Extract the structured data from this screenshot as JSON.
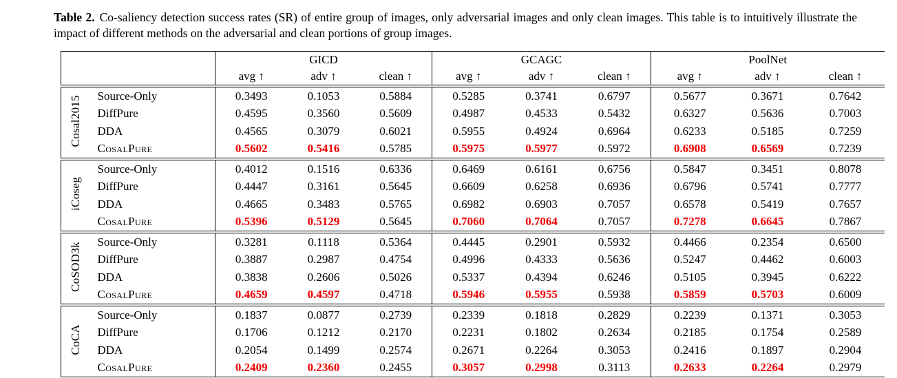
{
  "caption": {
    "label": "Table 2.",
    "text": "Co-saliency detection success rates (SR) of entire group of images, only adversarial images and only clean images. This table is to intuitively illustrate the impact of different methods on the adversarial and clean portions of group images."
  },
  "table": {
    "model_groups": [
      "GICD",
      "GCAGC",
      "PoolNet"
    ],
    "metric_headers": [
      "avg ↑",
      "adv ↑",
      "clean ↑"
    ],
    "highlight_color": "#ee0000",
    "datasets": [
      {
        "name": "Cosal2015",
        "rows": [
          {
            "method": "Source-Only",
            "values": [
              "0.3493",
              "0.1053",
              "0.5884",
              "0.5285",
              "0.3741",
              "0.6797",
              "0.5677",
              "0.3671",
              "0.7642"
            ],
            "red_indices": []
          },
          {
            "method": "DiffPure",
            "values": [
              "0.4595",
              "0.3560",
              "0.5609",
              "0.4987",
              "0.4533",
              "0.5432",
              "0.6327",
              "0.5636",
              "0.7003"
            ],
            "red_indices": []
          },
          {
            "method": "DDA",
            "values": [
              "0.4565",
              "0.3079",
              "0.6021",
              "0.5955",
              "0.4924",
              "0.6964",
              "0.6233",
              "0.5185",
              "0.7259"
            ],
            "red_indices": []
          },
          {
            "method": "CosalPure",
            "smallcaps": true,
            "values": [
              "0.5602",
              "0.5416",
              "0.5785",
              "0.5975",
              "0.5977",
              "0.5972",
              "0.6908",
              "0.6569",
              "0.7239"
            ],
            "red_indices": [
              0,
              1,
              3,
              4,
              6,
              7
            ]
          }
        ]
      },
      {
        "name": "iCoseg",
        "rows": [
          {
            "method": "Source-Only",
            "values": [
              "0.4012",
              "0.1516",
              "0.6336",
              "0.6469",
              "0.6161",
              "0.6756",
              "0.5847",
              "0.3451",
              "0.8078"
            ],
            "red_indices": []
          },
          {
            "method": "DiffPure",
            "values": [
              "0.4447",
              "0.3161",
              "0.5645",
              "0.6609",
              "0.6258",
              "0.6936",
              "0.6796",
              "0.5741",
              "0.7777"
            ],
            "red_indices": []
          },
          {
            "method": "DDA",
            "values": [
              "0.4665",
              "0.3483",
              "0.5765",
              "0.6982",
              "0.6903",
              "0.7057",
              "0.6578",
              "0.5419",
              "0.7657"
            ],
            "red_indices": []
          },
          {
            "method": "CosalPure",
            "smallcaps": true,
            "values": [
              "0.5396",
              "0.5129",
              "0.5645",
              "0.7060",
              "0.7064",
              "0.7057",
              "0.7278",
              "0.6645",
              "0.7867"
            ],
            "red_indices": [
              0,
              1,
              3,
              4,
              6,
              7
            ]
          }
        ]
      },
      {
        "name": "CoSOD3k",
        "rows": [
          {
            "method": "Source-Only",
            "values": [
              "0.3281",
              "0.1118",
              "0.5364",
              "0.4445",
              "0.2901",
              "0.5932",
              "0.4466",
              "0.2354",
              "0.6500"
            ],
            "red_indices": []
          },
          {
            "method": "DiffPure",
            "values": [
              "0.3887",
              "0.2987",
              "0.4754",
              "0.4996",
              "0.4333",
              "0.5636",
              "0.5247",
              "0.4462",
              "0.6003"
            ],
            "red_indices": []
          },
          {
            "method": "DDA",
            "values": [
              "0.3838",
              "0.2606",
              "0.5026",
              "0.5337",
              "0.4394",
              "0.6246",
              "0.5105",
              "0.3945",
              "0.6222"
            ],
            "red_indices": []
          },
          {
            "method": "CosalPure",
            "smallcaps": true,
            "values": [
              "0.4659",
              "0.4597",
              "0.4718",
              "0.5946",
              "0.5955",
              "0.5938",
              "0.5859",
              "0.5703",
              "0.6009"
            ],
            "red_indices": [
              0,
              1,
              3,
              4,
              6,
              7
            ]
          }
        ]
      },
      {
        "name": "CoCA",
        "rows": [
          {
            "method": "Source-Only",
            "values": [
              "0.1837",
              "0.0877",
              "0.2739",
              "0.2339",
              "0.1818",
              "0.2829",
              "0.2239",
              "0.1371",
              "0.3053"
            ],
            "red_indices": []
          },
          {
            "method": "DiffPure",
            "values": [
              "0.1706",
              "0.1212",
              "0.2170",
              "0.2231",
              "0.1802",
              "0.2634",
              "0.2185",
              "0.1754",
              "0.2589"
            ],
            "red_indices": []
          },
          {
            "method": "DDA",
            "values": [
              "0.2054",
              "0.1499",
              "0.2574",
              "0.2671",
              "0.2264",
              "0.3053",
              "0.2416",
              "0.1897",
              "0.2904"
            ],
            "red_indices": []
          },
          {
            "method": "CosalPure",
            "smallcaps": true,
            "values": [
              "0.2409",
              "0.2360",
              "0.2455",
              "0.3057",
              "0.2998",
              "0.3113",
              "0.2633",
              "0.2264",
              "0.2979"
            ],
            "red_indices": [
              0,
              1,
              3,
              4,
              6,
              7
            ]
          }
        ]
      }
    ]
  }
}
